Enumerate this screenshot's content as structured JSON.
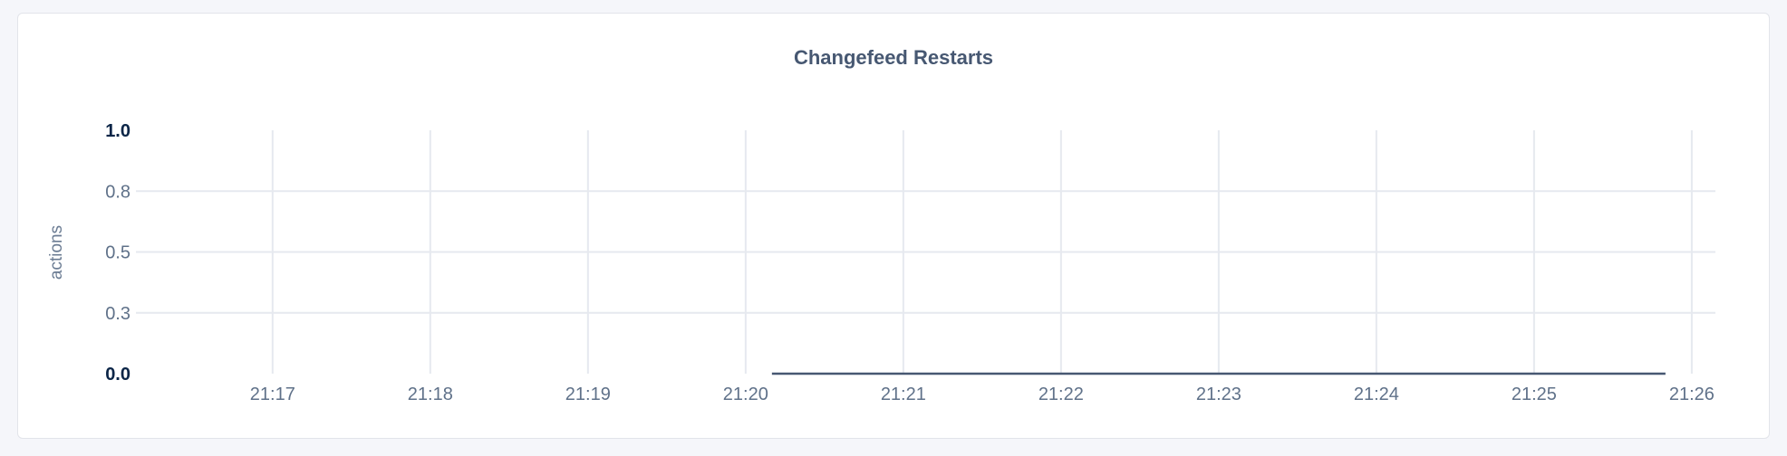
{
  "chart_data": {
    "type": "line",
    "title": "Changefeed Restarts",
    "xlabel": "",
    "ylabel": "actions",
    "x_ticks": [
      "21:17",
      "21:18",
      "21:19",
      "21:20",
      "21:21",
      "21:22",
      "21:23",
      "21:24",
      "21:25",
      "21:26"
    ],
    "y_ticks": [
      {
        "value": 0,
        "label": "0.0",
        "bold": true
      },
      {
        "value": 0.25,
        "label": "0.3",
        "bold": false
      },
      {
        "value": 0.5,
        "label": "0.5",
        "bold": false
      },
      {
        "value": 0.75,
        "label": "0.8",
        "bold": false
      },
      {
        "value": 1,
        "label": "1.0",
        "bold": true
      }
    ],
    "ylim": [
      0,
      1
    ],
    "xlim": [
      "21:16:08",
      "21:26:09"
    ],
    "grid": true,
    "series": [
      {
        "color": "#475872",
        "points": [
          [
            "21:20:10",
            0
          ],
          [
            "21:25:50",
            0
          ]
        ]
      }
    ]
  }
}
